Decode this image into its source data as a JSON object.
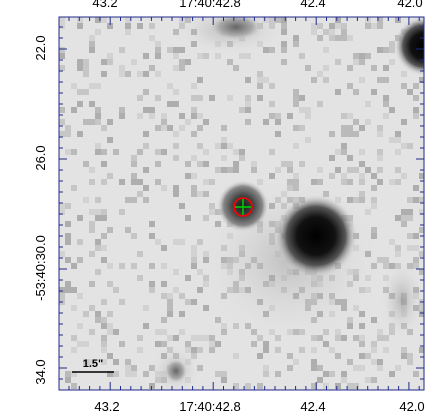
{
  "image": {
    "title": "",
    "description_hidden": true
  },
  "axes": {
    "x_tick_labels_top": [
      "43.2",
      "17:40:42.8",
      "42.4",
      "42.0"
    ],
    "x_tick_labels_bottom": [
      "43.2",
      "17:40:42.8",
      "42.4",
      "42.0"
    ],
    "y_tick_labels": [
      "22.0",
      "26.0",
      "-53:40:30.0",
      "34.0"
    ]
  },
  "scale_bar": {
    "label": "1.5\""
  },
  "markers": {
    "circle_color": "#ff0000",
    "cross_color": "#00cc00"
  },
  "colors": {
    "frame": "#1f2a8a",
    "background": "#e3e3e3",
    "source": "#000000"
  }
}
